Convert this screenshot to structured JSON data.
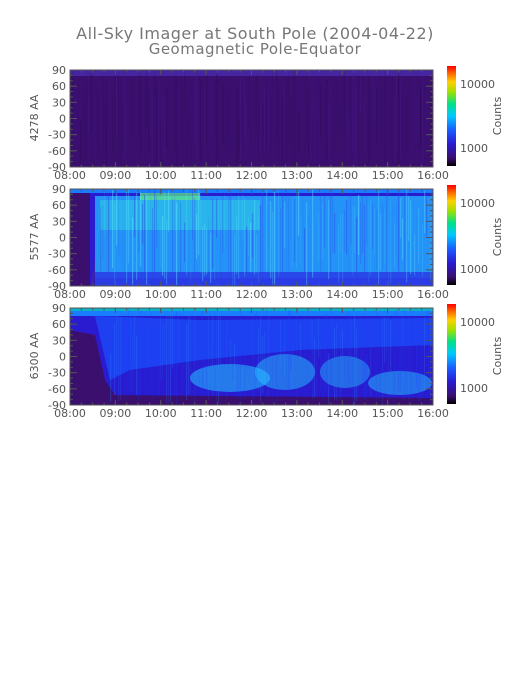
{
  "title": "All-Sky Imager at South Pole (2004-04-22)",
  "subtitle": "Geomagnetic Pole-Equator",
  "chart_data": [
    {
      "type": "heatmap",
      "ylabel": "4278 AA",
      "x_ticks": [
        "08:00",
        "09:00",
        "10:00",
        "11:00",
        "12:00",
        "13:00",
        "14:00",
        "15:00",
        "16:00"
      ],
      "xlim": [
        "08:00",
        "16:00"
      ],
      "y_ticks": [
        90,
        60,
        30,
        0,
        -30,
        -60,
        -90
      ],
      "ylim": [
        -90,
        90
      ],
      "colorbar": {
        "label": "Counts",
        "ticks": [
          10000,
          1000
        ],
        "scale": "log"
      },
      "intensity": "uniformly low (dark purple) across the whole interval"
    },
    {
      "type": "heatmap",
      "ylabel": "5577 AA",
      "x_ticks": [
        "08:00",
        "09:00",
        "10:00",
        "11:00",
        "12:00",
        "13:00",
        "14:00",
        "15:00",
        "16:00"
      ],
      "xlim": [
        "08:00",
        "16:00"
      ],
      "y_ticks": [
        90,
        60,
        30,
        0,
        -30,
        -60,
        -90
      ],
      "ylim": [
        -90,
        90
      ],
      "colorbar": {
        "label": "Counts",
        "ticks": [
          10000,
          1000
        ],
        "scale": "log"
      },
      "intensity": "high (cyan/green) aurora from ~08:40 to 16:00 between about -80 and 90 degrees"
    },
    {
      "type": "heatmap",
      "ylabel": "6300 AA",
      "x_ticks": [
        "08:00",
        "09:00",
        "10:00",
        "11:00",
        "12:00",
        "13:00",
        "14:00",
        "15:00",
        "16:00"
      ],
      "xlim": [
        "08:00",
        "16:00"
      ],
      "y_ticks": [
        90,
        60,
        30,
        0,
        -30,
        -60,
        -90
      ],
      "ylim": [
        -90,
        90
      ],
      "colorbar": {
        "label": "Counts",
        "ticks": [
          10000,
          1000
        ],
        "scale": "log"
      },
      "intensity": "moderate (blue) with cyan patches near -40 to -80 degrees after 10:30"
    }
  ],
  "colors": {
    "low": "#3a0f6e",
    "mid": "#1a3cff",
    "cyan": "#22c8ff",
    "high": "#ff2a00",
    "axis": "#555555"
  }
}
